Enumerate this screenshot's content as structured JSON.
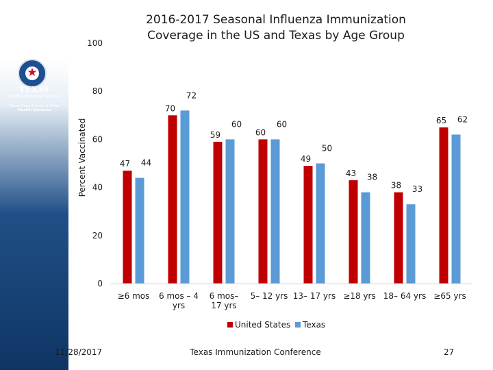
{
  "logo": {
    "line1": "TEXAS",
    "line2": "Health and Human Services",
    "line3": "Texas Department of State",
    "line4": "Health Services"
  },
  "footer": {
    "date": "11/28/2017",
    "conference": "Texas Immunization Conference",
    "page": "27"
  },
  "colors": {
    "us": "#c00000",
    "texas": "#5b9bd5"
  },
  "chart_data": {
    "type": "bar",
    "title": "2016-2017 Seasonal Influenza Immunization Coverage in the US and Texas by Age Group",
    "title_lines": [
      "2016-2017 Seasonal Influenza Immunization",
      "Coverage in the US and Texas by Age Group"
    ],
    "ylabel": "Percent Vaccinated",
    "xlabel": "",
    "ylim": [
      0,
      100
    ],
    "yticks": [
      0,
      20,
      40,
      60,
      80,
      100
    ],
    "grid": false,
    "legend_position": "bottom",
    "categories": [
      [
        "≥6 mos"
      ],
      [
        "6 mos – 4",
        "yrs"
      ],
      [
        "6 mos–",
        "17 yrs"
      ],
      [
        "5– 12 yrs"
      ],
      [
        "13– 17 yrs"
      ],
      [
        "≥18 yrs"
      ],
      [
        "18– 64 yrs"
      ],
      [
        "≥65 yrs"
      ]
    ],
    "series": [
      {
        "name": "United States",
        "values": [
          47,
          70,
          59,
          60,
          49,
          43,
          38,
          65
        ]
      },
      {
        "name": "Texas",
        "values": [
          44,
          72,
          60,
          60,
          50,
          38,
          33,
          62
        ]
      }
    ]
  }
}
